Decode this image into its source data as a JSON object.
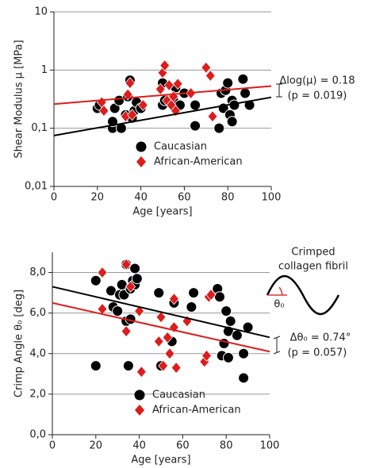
{
  "chart_data": [
    {
      "type": "scatter",
      "xlabel": "Age [years]",
      "ylabel": "Shear Modulus μ [MPa]",
      "xlim": [
        0,
        100
      ],
      "xticks": [
        0,
        20,
        40,
        60,
        80,
        100
      ],
      "ylim": [
        0.01,
        10
      ],
      "log_y": true,
      "yticks": [
        {
          "value": 0.01,
          "label": "0,01"
        },
        {
          "value": 0.1,
          "label": "0,1"
        },
        1,
        10
      ],
      "grid": true,
      "legend": "lower left",
      "annotations": [
        "Δlog(μ) = 0.18",
        "(p = 0.019)"
      ],
      "series": [
        {
          "name": "Caucasian",
          "color": "#000000",
          "marker": "circle",
          "x": [
            20,
            21,
            27,
            27,
            28,
            30,
            31,
            33,
            34,
            35,
            36,
            37,
            38,
            40,
            50,
            50,
            51,
            55,
            56,
            58,
            60,
            65,
            65,
            76,
            77,
            78,
            79,
            80,
            81,
            82,
            82,
            83,
            87,
            88,
            90
          ],
          "values": [
            0.22,
            0.25,
            0.1,
            0.13,
            0.22,
            0.3,
            0.1,
            0.17,
            0.35,
            0.67,
            0.15,
            0.2,
            0.28,
            0.22,
            0.6,
            0.25,
            0.3,
            0.3,
            0.5,
            0.25,
            0.4,
            0.11,
            0.25,
            0.1,
            0.4,
            0.22,
            0.45,
            0.6,
            0.17,
            0.3,
            0.13,
            0.25,
            0.7,
            0.4,
            0.25
          ],
          "trend": {
            "x": [
              0,
              100
            ],
            "values": [
              0.075,
              0.34
            ]
          }
        },
        {
          "name": "African-American",
          "color": "#dd1c1c",
          "marker": "diamond",
          "x": [
            22,
            23,
            33,
            34,
            35,
            36,
            41,
            49,
            50,
            51,
            52,
            53,
            54,
            55,
            56,
            57,
            63,
            70,
            72,
            73
          ],
          "values": [
            0.28,
            0.2,
            0.16,
            0.38,
            0.6,
            0.17,
            0.25,
            0.47,
            0.9,
            1.2,
            0.3,
            0.55,
            0.25,
            0.35,
            0.2,
            0.58,
            0.4,
            1.1,
            0.8,
            0.16
          ],
          "trend": {
            "x": [
              0,
              100
            ],
            "values": [
              0.26,
              0.53
            ]
          }
        }
      ]
    },
    {
      "type": "scatter",
      "xlabel": "Age [years]",
      "ylabel": "Crimp Angle θ₀ [deg]",
      "xlim": [
        0,
        100
      ],
      "xticks": [
        0,
        20,
        40,
        60,
        80,
        100
      ],
      "ylim": [
        0,
        9
      ],
      "yticks": [
        {
          "value": 0,
          "label": "0,0"
        },
        {
          "value": 2,
          "label": "2,0"
        },
        {
          "value": 4,
          "label": "4,0"
        },
        {
          "value": 6,
          "label": "6,0"
        },
        {
          "value": 8,
          "label": "8,0"
        }
      ],
      "grid": true,
      "legend": "lower left",
      "annotations": [
        "Δθ₀ = 0.74°",
        "(p = 0.057)",
        "Crimped",
        "collagen fibril",
        "θ₀"
      ],
      "series": [
        {
          "name": "Caucasian",
          "color": "#000000",
          "marker": "circle",
          "x": [
            20,
            20,
            27,
            28,
            30,
            31,
            32,
            33,
            34,
            34,
            35,
            36,
            36,
            37,
            38,
            38,
            39,
            49,
            50,
            55,
            56,
            64,
            65,
            76,
            77,
            78,
            79,
            80,
            81,
            81,
            82,
            88,
            88,
            90,
            85
          ],
          "values": [
            7.6,
            3.4,
            7.1,
            6.3,
            6.1,
            6.9,
            7.4,
            6.9,
            8.4,
            5.6,
            3.4,
            5.7,
            7.2,
            7.6,
            7.4,
            8.2,
            7.7,
            7,
            3.4,
            4.6,
            6.5,
            6.3,
            7,
            7.2,
            6.8,
            3.9,
            4.5,
            6.1,
            5.1,
            3.8,
            5.6,
            4,
            2.8,
            5.3,
            4.9
          ],
          "trend": {
            "x": [
              0,
              100
            ],
            "values": [
              7.3,
              4.8
            ]
          }
        },
        {
          "name": "African-American",
          "color": "#dd1c1c",
          "marker": "diamond",
          "x": [
            23,
            23,
            34,
            34,
            36,
            40,
            41,
            49,
            50,
            51,
            53,
            54,
            56,
            56,
            57,
            62,
            70,
            71,
            72,
            73
          ],
          "values": [
            8,
            6.2,
            8.4,
            5.1,
            7.3,
            6.1,
            3.1,
            4.6,
            5.8,
            3.4,
            4.8,
            4,
            5.3,
            6.7,
            3.3,
            5.6,
            3.6,
            3.9,
            6.8,
            6.9
          ],
          "trend": {
            "x": [
              0,
              100
            ],
            "values": [
              6.5,
              4.1
            ]
          }
        }
      ]
    }
  ]
}
